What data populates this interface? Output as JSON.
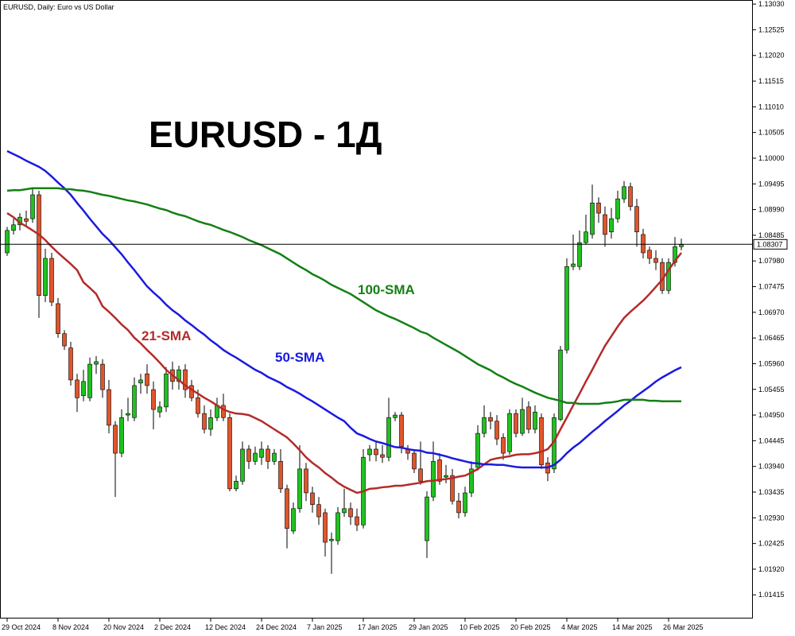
{
  "chart_data": {
    "type": "candlestick",
    "title": "EURUSD, Daily: Euro vs US Dollar",
    "heading": "EURUSD - 1Д",
    "categories": [
      "29 Oct 2024",
      null,
      null,
      null,
      null,
      null,
      null,
      null,
      "8 Nov 2024",
      null,
      null,
      null,
      null,
      null,
      null,
      null,
      "20 Nov 2024",
      null,
      null,
      null,
      null,
      null,
      null,
      null,
      "2 Dec 2024",
      null,
      null,
      null,
      null,
      null,
      null,
      null,
      "12 Dec 2024",
      null,
      null,
      null,
      null,
      null,
      null,
      null,
      "24 Dec 2024",
      null,
      null,
      null,
      null,
      null,
      null,
      null,
      "7 Jan 2025",
      null,
      null,
      null,
      null,
      null,
      null,
      null,
      "17 Jan 2025",
      null,
      null,
      null,
      null,
      null,
      null,
      null,
      "29 Jan 2025",
      null,
      null,
      null,
      null,
      null,
      null,
      null,
      "10 Feb 2025",
      null,
      null,
      null,
      null,
      null,
      null,
      null,
      "20 Feb 2025",
      null,
      null,
      null,
      null,
      null,
      null,
      null,
      "4 Mar 2025",
      null,
      null,
      null,
      null,
      null,
      null,
      null,
      "14 Mar 2025",
      null,
      null,
      null,
      null,
      null,
      null,
      null,
      "26 Mar 2025",
      null,
      null
    ],
    "open": [
      1.0814,
      1.0858,
      1.0869,
      1.0881,
      1.0881,
      1.0928,
      1.073,
      1.0803,
      1.0714,
      1.0655,
      1.0627,
      1.0564,
      1.0533,
      1.0529,
      1.0595,
      1.0595,
      1.0545,
      1.0475,
      1.042,
      1.0495,
      1.049,
      1.0558,
      1.0576,
      1.0545,
      1.0501,
      1.0511,
      1.0584,
      1.0561,
      1.0584,
      1.0553,
      1.0529,
      1.0498,
      1.0467,
      1.049,
      1.0514,
      1.049,
      1.035,
      1.0365,
      1.0428,
      1.0404,
      1.0412,
      1.0428,
      1.0404,
      1.0404,
      1.035,
      1.0267,
      1.0311,
      1.0389,
      1.0342,
      1.0319,
      1.0303,
      1.0248,
      1.0248,
      1.0303,
      1.0311,
      1.0295,
      1.0279,
      1.0417,
      1.0428,
      1.0417,
      1.0412,
      1.049,
      1.0495,
      1.0428,
      1.042,
      1.0389,
      1.0248,
      1.0334,
      1.0407,
      1.0373,
      1.0376,
      1.0326,
      1.0303,
      1.0342,
      1.0392,
      1.0459,
      1.049,
      1.0483,
      1.0451,
      1.0423,
      1.0498,
      1.0459,
      1.0511,
      1.0467,
      1.049,
      1.0401,
      1.0389,
      1.0486,
      1.0623,
      1.0787,
      1.0787,
      1.0834,
      1.085,
      1.0912,
      1.0889,
      1.0855,
      1.0881,
      1.092,
      1.0944,
      1.0905,
      1.085,
      1.0819,
      1.0803,
      1.0795,
      1.074,
      1.0795,
      1.0826
    ],
    "high": [
      1.0865,
      1.0881,
      1.0892,
      1.0897,
      1.0939,
      1.0936,
      1.0822,
      1.0814,
      1.0725,
      1.0662,
      1.0639,
      1.0576,
      1.0584,
      1.0608,
      1.0611,
      1.0605,
      1.0564,
      1.0483,
      1.0506,
      1.0529,
      1.0569,
      1.0576,
      1.0595,
      1.0561,
      1.0522,
      1.0589,
      1.06,
      1.0592,
      1.0595,
      1.0564,
      1.0545,
      1.0514,
      1.0506,
      1.0529,
      1.0537,
      1.0498,
      1.0376,
      1.0443,
      1.0436,
      1.0433,
      1.0443,
      1.0436,
      1.0428,
      1.0428,
      1.0358,
      1.0323,
      1.0436,
      1.0401,
      1.0354,
      1.0334,
      1.0311,
      1.0264,
      1.0314,
      1.035,
      1.0323,
      1.0311,
      1.0428,
      1.0436,
      1.0443,
      1.0436,
      1.0529,
      1.0501,
      1.0501,
      1.0436,
      1.0428,
      1.0443,
      1.0345,
      1.0443,
      1.042,
      1.0397,
      1.0389,
      1.0342,
      1.0354,
      1.0404,
      1.0475,
      1.0514,
      1.0501,
      1.0495,
      1.0459,
      1.0506,
      1.0506,
      1.0529,
      1.0522,
      1.0514,
      1.0498,
      1.0412,
      1.0498,
      1.0631,
      1.0803,
      1.085,
      1.0858,
      1.0889,
      1.0948,
      1.0923,
      1.0905,
      1.0902,
      1.0936,
      1.0955,
      1.0952,
      1.092,
      1.0861,
      1.0826,
      1.0819,
      1.0803,
      1.0803,
      1.0845,
      1.0842
    ],
    "low": [
      1.0808,
      1.085,
      1.0858,
      1.0865,
      1.0873,
      1.0686,
      1.0717,
      1.0709,
      1.0647,
      1.0623,
      1.0553,
      1.0501,
      1.0522,
      1.0522,
      1.0576,
      1.0529,
      1.0459,
      1.0334,
      1.0412,
      1.0483,
      1.0483,
      1.0537,
      1.0537,
      1.0467,
      1.049,
      1.0501,
      1.0545,
      1.0545,
      1.0529,
      1.0522,
      1.049,
      1.0459,
      1.0454,
      1.0483,
      1.0483,
      1.0345,
      1.0345,
      1.0358,
      1.0389,
      1.0397,
      1.0397,
      1.0389,
      1.0397,
      1.0342,
      1.0233,
      1.0261,
      1.0303,
      1.0326,
      1.0303,
      1.0279,
      1.0217,
      1.0183,
      1.024,
      1.0295,
      1.0279,
      1.0267,
      1.0272,
      1.0404,
      1.0404,
      1.0401,
      1.0404,
      1.0483,
      1.042,
      1.0407,
      1.0381,
      1.0358,
      1.0214,
      1.0326,
      1.0358,
      1.0361,
      1.0319,
      1.0292,
      1.0295,
      1.0334,
      1.0386,
      1.0451,
      1.0467,
      1.0436,
      1.0407,
      1.0417,
      1.0451,
      1.0454,
      1.0459,
      1.0459,
      1.0389,
      1.0365,
      1.0381,
      1.0483,
      1.0616,
      1.078,
      1.078,
      1.083,
      1.0842,
      1.0873,
      1.0826,
      1.0842,
      1.0873,
      1.0912,
      1.0897,
      1.0826,
      1.0803,
      1.0792,
      1.078,
      1.0733,
      1.0733,
      1.0787,
      1.0819
    ],
    "close": [
      1.0858,
      1.0869,
      1.0884,
      1.0876,
      1.0928,
      1.073,
      1.0803,
      1.0717,
      1.0655,
      1.0631,
      1.0564,
      1.0529,
      1.0561,
      1.0595,
      1.06,
      1.0545,
      1.0475,
      1.042,
      1.049,
      1.0498,
      1.0553,
      1.0564,
      1.0553,
      1.0506,
      1.0511,
      1.0576,
      1.0561,
      1.0584,
      1.0545,
      1.0529,
      1.0498,
      1.0467,
      1.049,
      1.0514,
      1.049,
      1.035,
      1.0365,
      1.0428,
      1.0404,
      1.042,
      1.0428,
      1.0404,
      1.042,
      1.035,
      1.0272,
      1.0311,
      1.0389,
      1.0342,
      1.0319,
      1.0295,
      1.0245,
      1.0251,
      1.0303,
      1.0311,
      1.0295,
      1.0279,
      1.0412,
      1.0428,
      1.0417,
      1.0412,
      1.049,
      1.0495,
      1.0433,
      1.042,
      1.0389,
      1.0365,
      1.0334,
      1.0404,
      1.0365,
      1.0376,
      1.0326,
      1.0303,
      1.0342,
      1.0389,
      1.0459,
      1.049,
      1.0483,
      1.0448,
      1.042,
      1.0498,
      1.0459,
      1.0506,
      1.0467,
      1.0501,
      1.0397,
      1.0381,
      1.049,
      1.0623,
      1.0787,
      1.0792,
      1.0834,
      1.0855,
      1.0912,
      1.0892,
      1.085,
      1.0881,
      1.092,
      1.0944,
      1.0905,
      1.0855,
      1.0814,
      1.0803,
      1.0795,
      1.074,
      1.0795,
      1.0826,
      1.083
    ],
    "up_color": "#1fc21f",
    "down_color": "#e0552b",
    "series": [
      {
        "name": "21-SMA",
        "color": "#b52a2a",
        "values": [
          1.0892,
          1.0884,
          1.0873,
          1.0866,
          1.0858,
          1.085,
          1.0839,
          1.0826,
          1.0814,
          1.0803,
          1.0792,
          1.078,
          1.0756,
          1.0745,
          1.0733,
          1.0709,
          1.0698,
          1.0686,
          1.0673,
          1.0662,
          1.0647,
          1.0636,
          1.0623,
          1.0611,
          1.0598,
          1.0584,
          1.0573,
          1.0564,
          1.0553,
          1.0545,
          1.0537,
          1.0529,
          1.0522,
          1.0514,
          1.0506,
          1.0501,
          1.0498,
          1.0497,
          1.0495,
          1.0489,
          1.0483,
          1.0475,
          1.0467,
          1.0459,
          1.0451,
          1.0439,
          1.0426,
          1.0412,
          1.0401,
          1.0392,
          1.0381,
          1.0372,
          1.0362,
          1.0354,
          1.0348,
          1.0342,
          1.0345,
          1.035,
          1.0351,
          1.0353,
          1.0354,
          1.0356,
          1.0356,
          1.0358,
          1.036,
          1.0362,
          1.0365,
          1.0366,
          1.0368,
          1.0369,
          1.0371,
          1.0374,
          1.0376,
          1.0382,
          1.0389,
          1.0398,
          1.0407,
          1.041,
          1.0412,
          1.0414,
          1.0417,
          1.0418,
          1.0418,
          1.042,
          1.0423,
          1.0428,
          1.0443,
          1.0467,
          1.049,
          1.0514,
          1.0537,
          1.0561,
          1.0584,
          1.0608,
          1.0631,
          1.065,
          1.0669,
          1.0686,
          1.0698,
          1.0709,
          1.072,
          1.0733,
          1.0747,
          1.0761,
          1.078,
          1.0798,
          1.0814
        ]
      },
      {
        "name": "50-SMA",
        "color": "#1a1ae0",
        "values": [
          1.1014,
          1.1008,
          1.1002,
          1.0995,
          1.0989,
          1.0983,
          1.0975,
          1.0964,
          1.0952,
          1.0941,
          1.0928,
          1.0912,
          1.0897,
          1.0881,
          1.0866,
          1.0851,
          1.0839,
          1.0825,
          1.0811,
          1.0795,
          1.078,
          1.0764,
          1.0748,
          1.0736,
          1.0725,
          1.0712,
          1.0701,
          1.0692,
          1.0681,
          1.0672,
          1.0662,
          1.0653,
          1.0642,
          1.0633,
          1.0623,
          1.0615,
          1.0608,
          1.06,
          1.0592,
          1.0584,
          1.0578,
          1.057,
          1.0564,
          1.0558,
          1.055,
          1.0544,
          1.0537,
          1.0529,
          1.0522,
          1.0514,
          1.0506,
          1.0498,
          1.049,
          1.0483,
          1.047,
          1.0459,
          1.0454,
          1.0448,
          1.0443,
          1.044,
          1.0436,
          1.0432,
          1.0431,
          1.0428,
          1.0426,
          1.0425,
          1.0421,
          1.042,
          1.0417,
          1.0414,
          1.041,
          1.0407,
          1.0404,
          1.0401,
          1.04,
          1.0398,
          1.0398,
          1.0397,
          1.0397,
          1.0395,
          1.0393,
          1.0392,
          1.0392,
          1.0392,
          1.0392,
          1.0392,
          1.0397,
          1.0407,
          1.042,
          1.0431,
          1.044,
          1.0451,
          1.0462,
          1.0472,
          1.0483,
          1.0493,
          1.0503,
          1.0514,
          1.0523,
          1.0533,
          1.0542,
          1.0551,
          1.0561,
          1.0569,
          1.0576,
          1.0583,
          1.0589
        ]
      },
      {
        "name": "100-SMA",
        "color": "#148014",
        "values": [
          1.0936,
          1.0937,
          1.0937,
          1.0939,
          1.0941,
          1.0941,
          1.0941,
          1.0941,
          1.0941,
          1.0939,
          1.0939,
          1.0937,
          1.0936,
          1.0934,
          1.0931,
          1.0928,
          1.0926,
          1.0923,
          1.092,
          1.0917,
          1.0915,
          1.0912,
          1.0909,
          1.0905,
          1.0901,
          1.0898,
          1.0893,
          1.0889,
          1.0886,
          1.0881,
          1.0876,
          1.0872,
          1.0869,
          1.0864,
          1.0859,
          1.0855,
          1.085,
          1.0845,
          1.0839,
          1.0834,
          1.0829,
          1.0823,
          1.0817,
          1.0811,
          1.0803,
          1.0795,
          1.0787,
          1.078,
          1.0772,
          1.0766,
          1.0759,
          1.0751,
          1.0745,
          1.0739,
          1.0733,
          1.0725,
          1.0717,
          1.0709,
          1.0701,
          1.0695,
          1.0689,
          1.0684,
          1.0678,
          1.0672,
          1.0666,
          1.0659,
          1.0655,
          1.0647,
          1.064,
          1.0633,
          1.0626,
          1.0619,
          1.0611,
          1.0603,
          1.0595,
          1.0589,
          1.0583,
          1.0575,
          1.0569,
          1.0562,
          1.0556,
          1.0551,
          1.0545,
          1.0539,
          1.0534,
          1.0529,
          1.0526,
          1.0523,
          1.0519,
          1.0519,
          1.0517,
          1.0517,
          1.0517,
          1.0517,
          1.0519,
          1.052,
          1.0522,
          1.0525,
          1.0525,
          1.0525,
          1.0525,
          1.0523,
          1.0523,
          1.0522,
          1.0522,
          1.0522,
          1.0522
        ]
      }
    ],
    "ylim": [
      1.0095,
      1.1311
    ],
    "yticks": [
      {
        "value": 1.1303,
        "label": "1.13030"
      },
      {
        "value": 1.12525,
        "label": "1.12525"
      },
      {
        "value": 1.1202,
        "label": "1.12020"
      },
      {
        "value": 1.11515,
        "label": "1.11515"
      },
      {
        "value": 1.1101,
        "label": "1.11010"
      },
      {
        "value": 1.10505,
        "label": "1.10505"
      },
      {
        "value": 1.1,
        "label": "1.10000"
      },
      {
        "value": 1.09495,
        "label": "1.09495"
      },
      {
        "value": 1.0899,
        "label": "1.08990"
      },
      {
        "value": 1.08485,
        "label": "1.08485"
      },
      {
        "value": 1.0798,
        "label": "1.07980"
      },
      {
        "value": 1.07475,
        "label": "1.07475"
      },
      {
        "value": 1.0697,
        "label": "1.06970"
      },
      {
        "value": 1.06465,
        "label": "1.06465"
      },
      {
        "value": 1.0596,
        "label": "1.05960"
      },
      {
        "value": 1.05455,
        "label": "1.05455"
      },
      {
        "value": 1.0495,
        "label": "1.04950"
      },
      {
        "value": 1.04445,
        "label": "1.04445"
      },
      {
        "value": 1.0394,
        "label": "1.03940"
      },
      {
        "value": 1.03435,
        "label": "1.03435"
      },
      {
        "value": 1.0293,
        "label": "1.02930"
      },
      {
        "value": 1.02425,
        "label": "1.02425"
      },
      {
        "value": 1.0192,
        "label": "1.01920"
      },
      {
        "value": 1.01415,
        "label": "1.01415"
      }
    ],
    "price_line": {
      "value": 1.08307,
      "label": "1.08307"
    },
    "grid": false
  }
}
